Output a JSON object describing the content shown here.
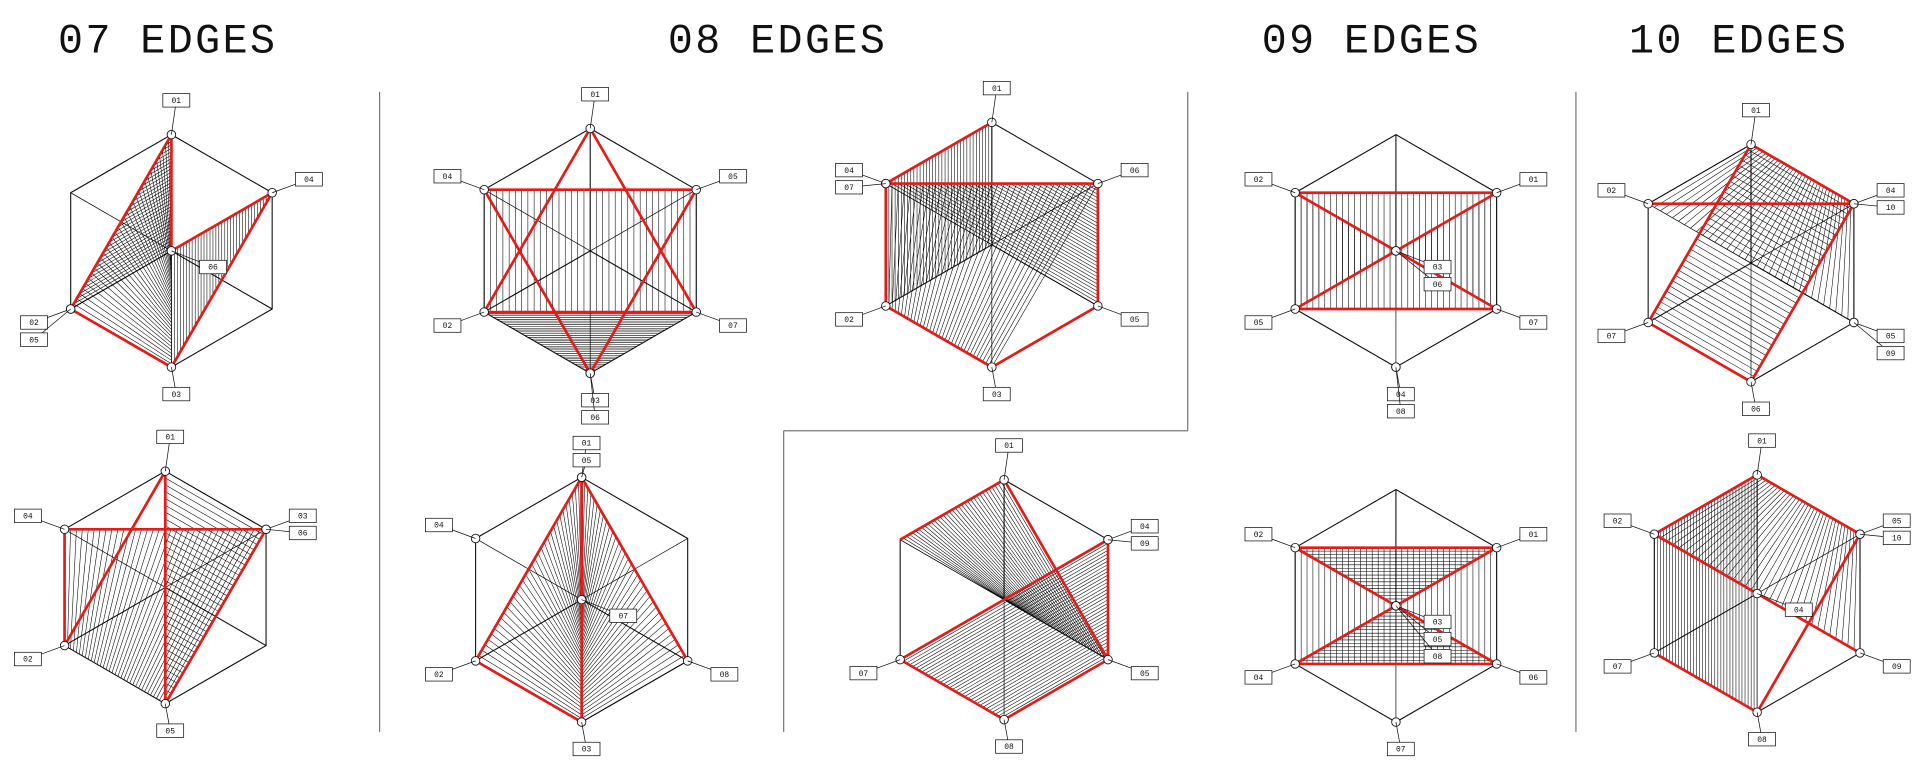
{
  "panels": [
    {
      "title": "07 EDGES",
      "figures": [
        {
          "labels": [
            "01",
            "02",
            "03",
            "04",
            "05",
            "06"
          ]
        },
        {
          "labels": [
            "01",
            "02",
            "03",
            "04",
            "05",
            "06"
          ]
        }
      ]
    },
    {
      "title": "08 EDGES",
      "figures": [
        {
          "labels": [
            "01",
            "02",
            "03",
            "04",
            "05",
            "06",
            "07"
          ]
        },
        {
          "labels": [
            "01",
            "02",
            "03",
            "04",
            "05",
            "06",
            "07"
          ]
        },
        {
          "labels": [
            "01",
            "05",
            "04",
            "02",
            "07",
            "08",
            "03"
          ]
        },
        {
          "labels": [
            "01",
            "04",
            "09",
            "05",
            "07",
            "08"
          ]
        }
      ]
    },
    {
      "title": "09 EDGES",
      "figures": [
        {
          "labels": [
            "02",
            "01",
            "03",
            "06",
            "05",
            "04",
            "08",
            "07"
          ]
        },
        {
          "labels": [
            "02",
            "01",
            "03",
            "05",
            "04",
            "07",
            "06",
            "08"
          ]
        }
      ]
    },
    {
      "title": "10 EDGES",
      "figures": [
        {
          "labels": [
            "01",
            "04",
            "10",
            "05",
            "09",
            "02",
            "07",
            "06"
          ]
        },
        {
          "labels": [
            "01",
            "04",
            "05",
            "10",
            "09",
            "02",
            "07",
            "08"
          ]
        }
      ]
    }
  ]
}
